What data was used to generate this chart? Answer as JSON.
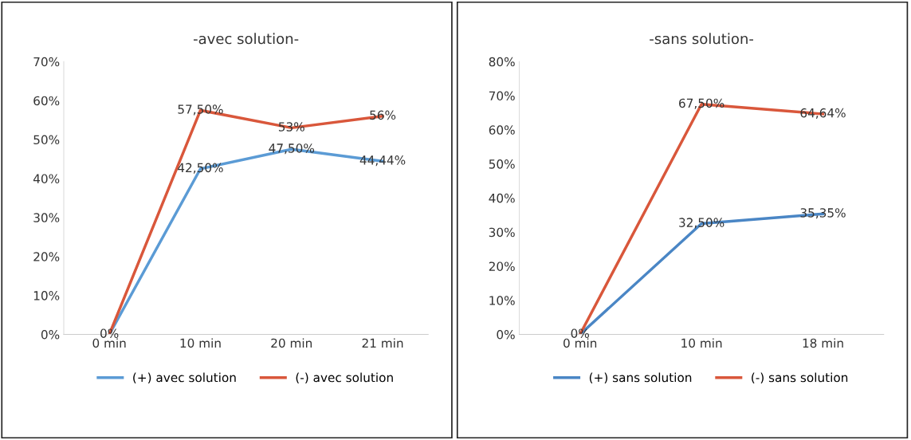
{
  "chart_data": [
    {
      "type": "line",
      "title": "-avec solution-",
      "categories": [
        "0 min",
        "10 min",
        "20 min",
        "21 min"
      ],
      "series": [
        {
          "name": "(+) avec solution",
          "color": "#5b9bd5",
          "values": [
            0,
            42.5,
            47.5,
            44.44
          ],
          "value_labels": [
            "0%",
            "42,50%",
            "47,50%",
            "44,44%"
          ]
        },
        {
          "name": "(-) avec solution",
          "color": "#d9573b",
          "values": [
            0,
            57.5,
            53,
            56
          ],
          "value_labels": [
            null,
            "57,50%",
            "53%",
            "56%"
          ]
        }
      ],
      "ylim": [
        0,
        70
      ],
      "yticks": [
        {
          "value": 0,
          "label": "0%"
        },
        {
          "value": 10,
          "label": "10%"
        },
        {
          "value": 20,
          "label": "20%"
        },
        {
          "value": 30,
          "label": "30%"
        },
        {
          "value": 40,
          "label": "40%"
        },
        {
          "value": 50,
          "label": "50%"
        },
        {
          "value": 60,
          "label": "60%"
        },
        {
          "value": 70,
          "label": "70%"
        }
      ],
      "legend": "bottom",
      "grid": false,
      "marker": "none",
      "line_style": "solid"
    },
    {
      "type": "line",
      "title": "-sans solution-",
      "categories": [
        "0 min",
        "10 min",
        "18 min"
      ],
      "series": [
        {
          "name": "(+) sans solution",
          "color": "#4a86c5",
          "values": [
            0,
            32.5,
            35.35
          ],
          "value_labels": [
            "0%",
            "32,50%",
            "35,35%"
          ]
        },
        {
          "name": "(-) sans solution",
          "color": "#d9573b",
          "values": [
            0,
            67.5,
            64.64
          ],
          "value_labels": [
            null,
            "67,50%",
            "64,64%"
          ]
        }
      ],
      "ylim": [
        0,
        80
      ],
      "yticks": [
        {
          "value": 0,
          "label": "0%"
        },
        {
          "value": 10,
          "label": "10%"
        },
        {
          "value": 20,
          "label": "20%"
        },
        {
          "value": 30,
          "label": "30%"
        },
        {
          "value": 40,
          "label": "40%"
        },
        {
          "value": 50,
          "label": "50%"
        },
        {
          "value": 60,
          "label": "60%"
        },
        {
          "value": 70,
          "label": "70%"
        },
        {
          "value": 80,
          "label": "80%"
        }
      ],
      "legend": "bottom",
      "grid": false,
      "marker": "none",
      "line_style": "solid"
    }
  ]
}
